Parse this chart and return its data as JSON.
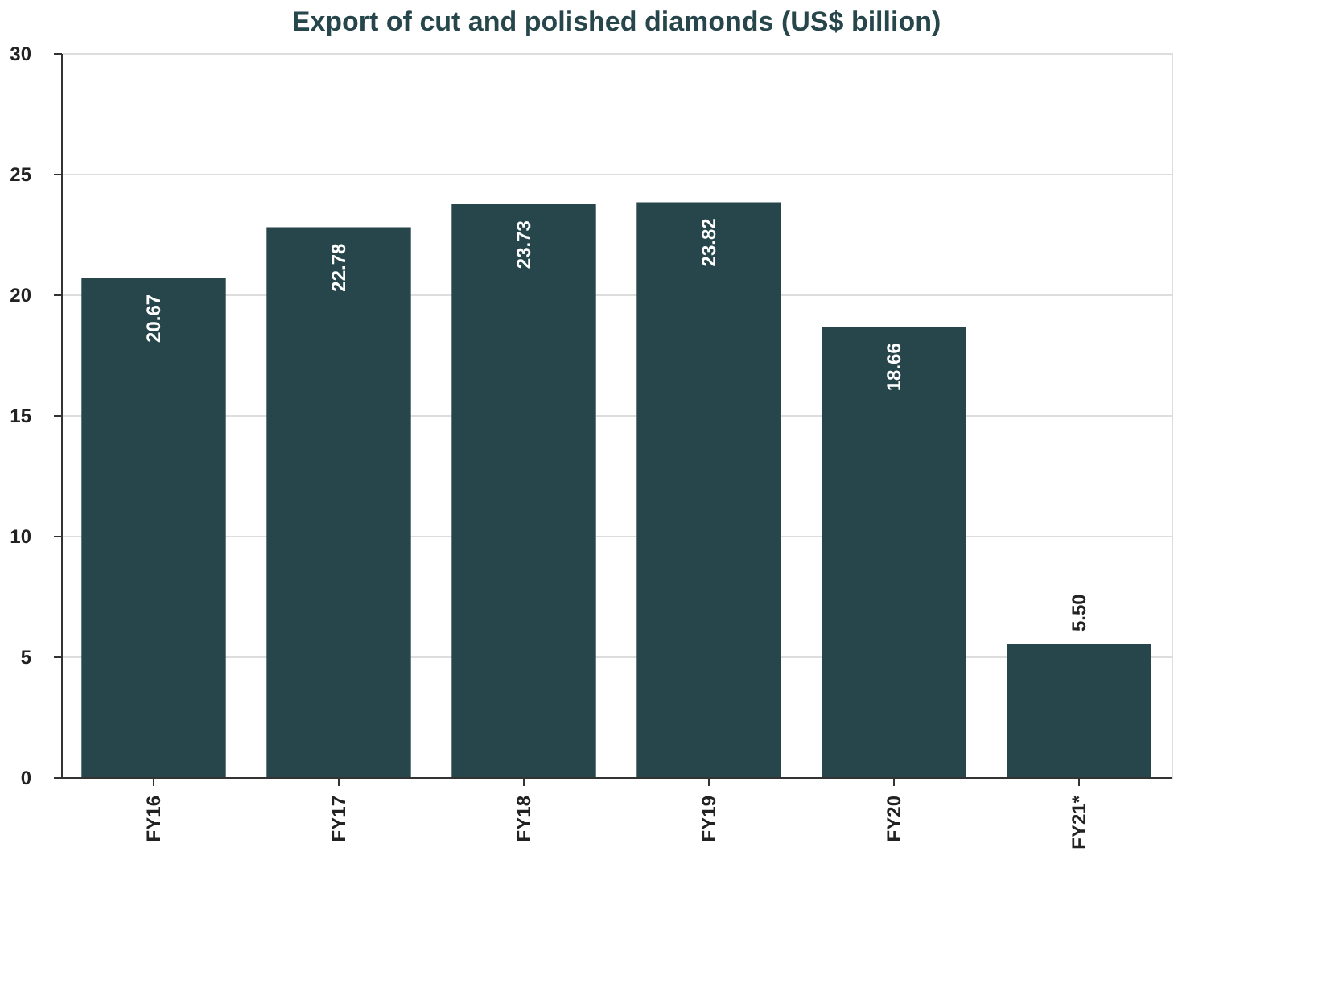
{
  "chart_data": {
    "type": "bar",
    "title": "Export of cut and polished diamonds (US$ billion)",
    "categories": [
      "FY16",
      "FY17",
      "FY18",
      "FY19",
      "FY20",
      "FY21*"
    ],
    "values": [
      20.67,
      22.78,
      23.73,
      23.82,
      18.66,
      5.5
    ],
    "value_labels": [
      "20.67",
      "22.78",
      "23.73",
      "23.82",
      "18.66",
      "5.50"
    ],
    "color": "#26464b",
    "ylim": [
      0,
      30
    ],
    "yticks": [
      0,
      5,
      10,
      15,
      20,
      25,
      30
    ],
    "grid": "y"
  }
}
